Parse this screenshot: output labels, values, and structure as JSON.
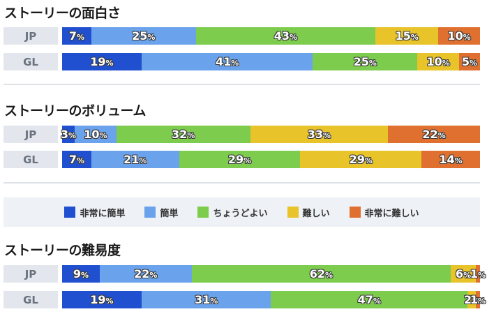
{
  "colors": [
    "#2050d0",
    "#6aa2eb",
    "#7dcc4e",
    "#e8c32a",
    "#e07030"
  ],
  "legend": [
    "非常に簡単",
    "簡単",
    "ちょうどよい",
    "難しい",
    "非常に難しい"
  ],
  "chart_data": [
    {
      "type": "bar",
      "stacked": true,
      "orientation": "horizontal",
      "title": "ストーリーの面白さ",
      "categories": [
        "JP",
        "GL"
      ],
      "series": [
        {
          "name": "非常に簡単",
          "values": [
            7,
            19
          ]
        },
        {
          "name": "簡単",
          "values": [
            25,
            41
          ]
        },
        {
          "name": "ちょうどよい",
          "values": [
            43,
            25
          ]
        },
        {
          "name": "難しい",
          "values": [
            15,
            10
          ]
        },
        {
          "name": "非常に難しい",
          "values": [
            10,
            5
          ]
        }
      ]
    },
    {
      "type": "bar",
      "stacked": true,
      "orientation": "horizontal",
      "title": "ストーリーのボリューム",
      "categories": [
        "JP",
        "GL"
      ],
      "series": [
        {
          "name": "非常に簡単",
          "values": [
            3,
            7
          ]
        },
        {
          "name": "簡単",
          "values": [
            10,
            21
          ]
        },
        {
          "name": "ちょうどよい",
          "values": [
            32,
            29
          ]
        },
        {
          "name": "難しい",
          "values": [
            33,
            29
          ]
        },
        {
          "name": "非常に難しい",
          "values": [
            22,
            14
          ]
        }
      ]
    },
    {
      "type": "bar",
      "stacked": true,
      "orientation": "horizontal",
      "title": "ストーリーの難易度",
      "categories": [
        "JP",
        "GL"
      ],
      "series": [
        {
          "name": "非常に簡単",
          "values": [
            9,
            19
          ]
        },
        {
          "name": "簡単",
          "values": [
            22,
            31
          ]
        },
        {
          "name": "ちょうどよい",
          "values": [
            62,
            47
          ]
        },
        {
          "name": "難しい",
          "values": [
            6,
            2
          ]
        },
        {
          "name": "非常に難しい",
          "values": [
            1,
            1
          ]
        }
      ]
    }
  ]
}
